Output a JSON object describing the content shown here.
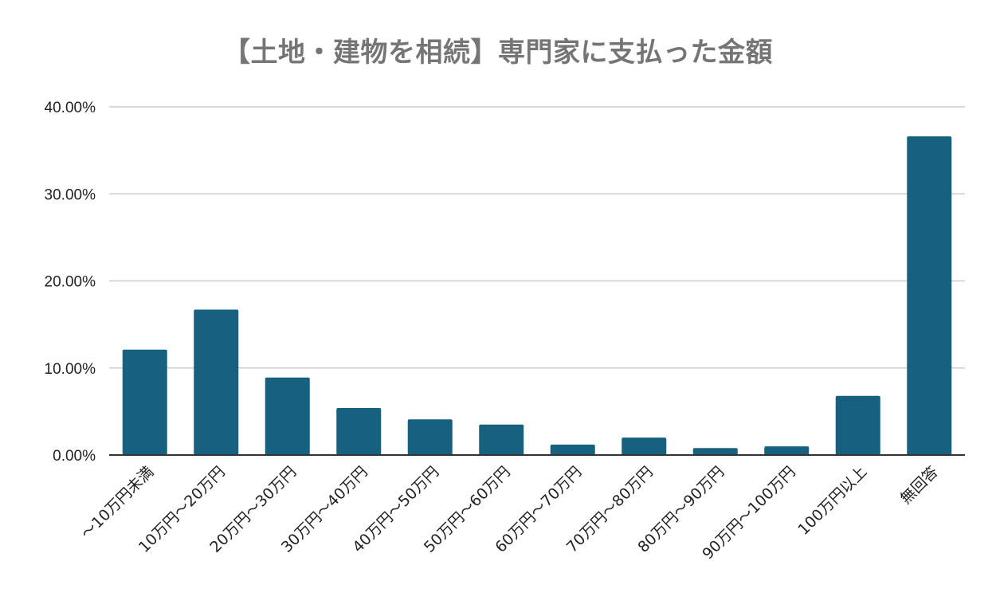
{
  "chart_data": {
    "type": "bar",
    "title": "【土地・建物を相続】専門家に支払った金額",
    "xlabel": "",
    "ylabel": "",
    "categories": [
      "〜10万円未満",
      "10万円〜20万円",
      "20万円〜30万円",
      "30万円〜40万円",
      "40万円〜50万円",
      "50万円〜60万円",
      "60万円〜70万円",
      "70万円〜80万円",
      "80万円〜90万円",
      "90万円〜100万円",
      "100万円以上",
      "無回答"
    ],
    "values": [
      12.1,
      16.7,
      8.9,
      5.4,
      4.1,
      3.5,
      1.2,
      2.0,
      0.8,
      1.0,
      6.8,
      36.6
    ],
    "ylim": [
      0,
      40
    ],
    "yticks": [
      "0.00%",
      "10.00%",
      "20.00%",
      "30.00%",
      "40.00%"
    ],
    "ytick_values": [
      0,
      10,
      20,
      30,
      40
    ],
    "grid": true,
    "legend": "none",
    "bar_color": "#17607f",
    "grid_color": "#cccccc",
    "axis_color": "#333333",
    "title_color": "#757575"
  }
}
